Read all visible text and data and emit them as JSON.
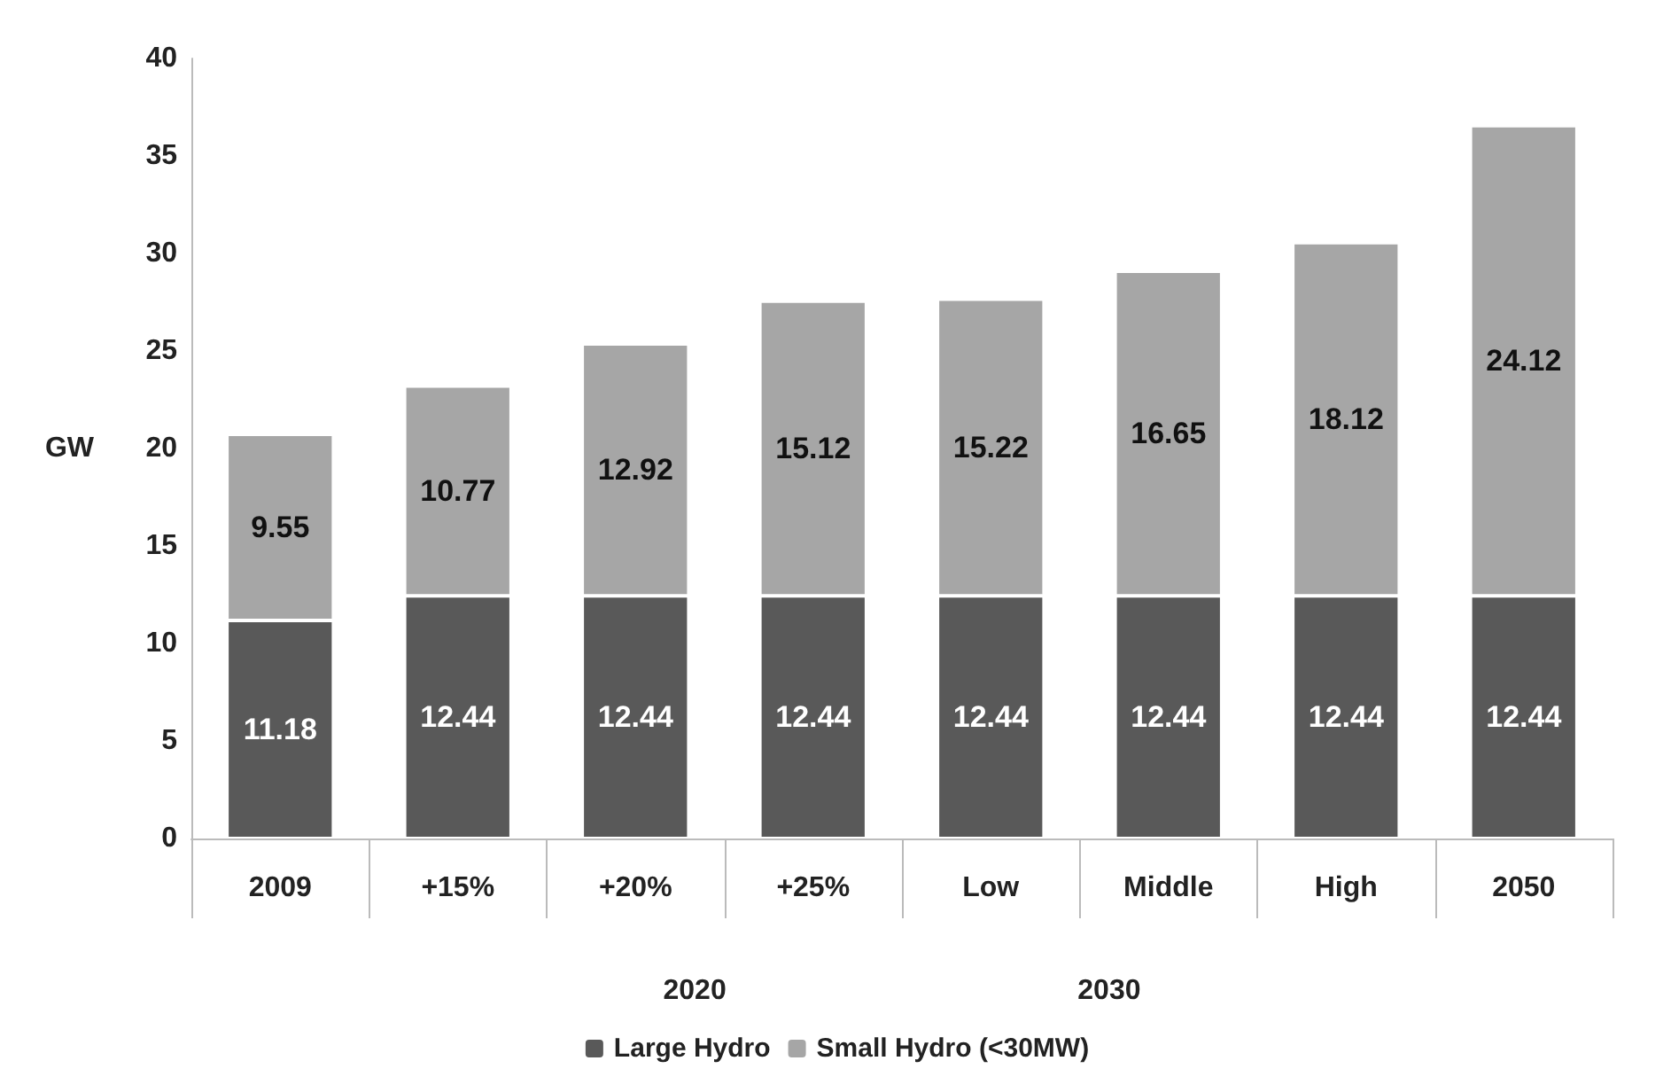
{
  "chart_data": {
    "type": "bar",
    "stacked": true,
    "ylabel": "GW",
    "categories": [
      "2009",
      "+15%",
      "+20%",
      "+25%",
      "Low",
      "Middle",
      "High",
      "2050"
    ],
    "series": [
      {
        "name": "Large Hydro",
        "color": "#595959",
        "values": [
          11.18,
          12.44,
          12.44,
          12.44,
          12.44,
          12.44,
          12.44,
          12.44
        ]
      },
      {
        "name": "Small Hydro (<30MW)",
        "color": "#a6a6a6",
        "values": [
          9.55,
          10.77,
          12.92,
          15.12,
          15.22,
          16.65,
          18.12,
          24.12
        ]
      }
    ],
    "ylim": [
      0,
      40
    ],
    "yticks": [
      0,
      5,
      10,
      15,
      20,
      25,
      30,
      35,
      40
    ],
    "data_labels": true,
    "grid": false,
    "legend": "bottom",
    "annotations": [
      "2020",
      "2030"
    ]
  }
}
